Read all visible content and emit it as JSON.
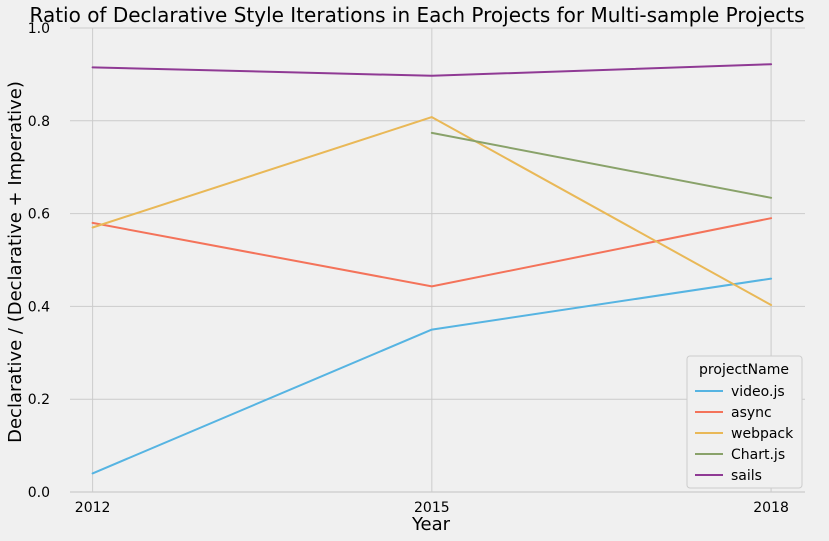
{
  "chart_data": {
    "type": "line",
    "title": "Ratio of Declarative Style Iterations in Each Projects for Multi-sample Projects",
    "xlabel": "Year",
    "ylabel": "Declarative / (Declarative + Imperative)",
    "x": [
      2012,
      2015,
      2018
    ],
    "x_ticks": [
      "2012",
      "2015",
      "2018"
    ],
    "xlim": [
      2011.8,
      2018.3
    ],
    "ylim": [
      0,
      1
    ],
    "y_ticks": [
      "0.0",
      "0.2",
      "0.4",
      "0.6",
      "0.8",
      "1.0"
    ],
    "grid": true,
    "legend": {
      "title": "projectName",
      "placement": "bottom-right"
    },
    "series": [
      {
        "name": "video.js",
        "color": "#56b4e2",
        "points": [
          [
            2012,
            0.04
          ],
          [
            2015,
            0.35
          ],
          [
            2018,
            0.46
          ]
        ]
      },
      {
        "name": "async",
        "color": "#f4735a",
        "points": [
          [
            2012,
            0.58
          ],
          [
            2015,
            0.443
          ],
          [
            2018,
            0.59
          ]
        ]
      },
      {
        "name": "webpack",
        "color": "#e9b857",
        "points": [
          [
            2012,
            0.57
          ],
          [
            2015,
            0.808
          ],
          [
            2018,
            0.403
          ]
        ]
      },
      {
        "name": "Chart.js",
        "color": "#89a26a",
        "points": [
          [
            2015,
            0.774
          ],
          [
            2018,
            0.634
          ]
        ]
      },
      {
        "name": "sails",
        "color": "#8f3a94",
        "points": [
          [
            2012,
            0.915
          ],
          [
            2015,
            0.897
          ],
          [
            2018,
            0.922
          ]
        ]
      }
    ]
  }
}
